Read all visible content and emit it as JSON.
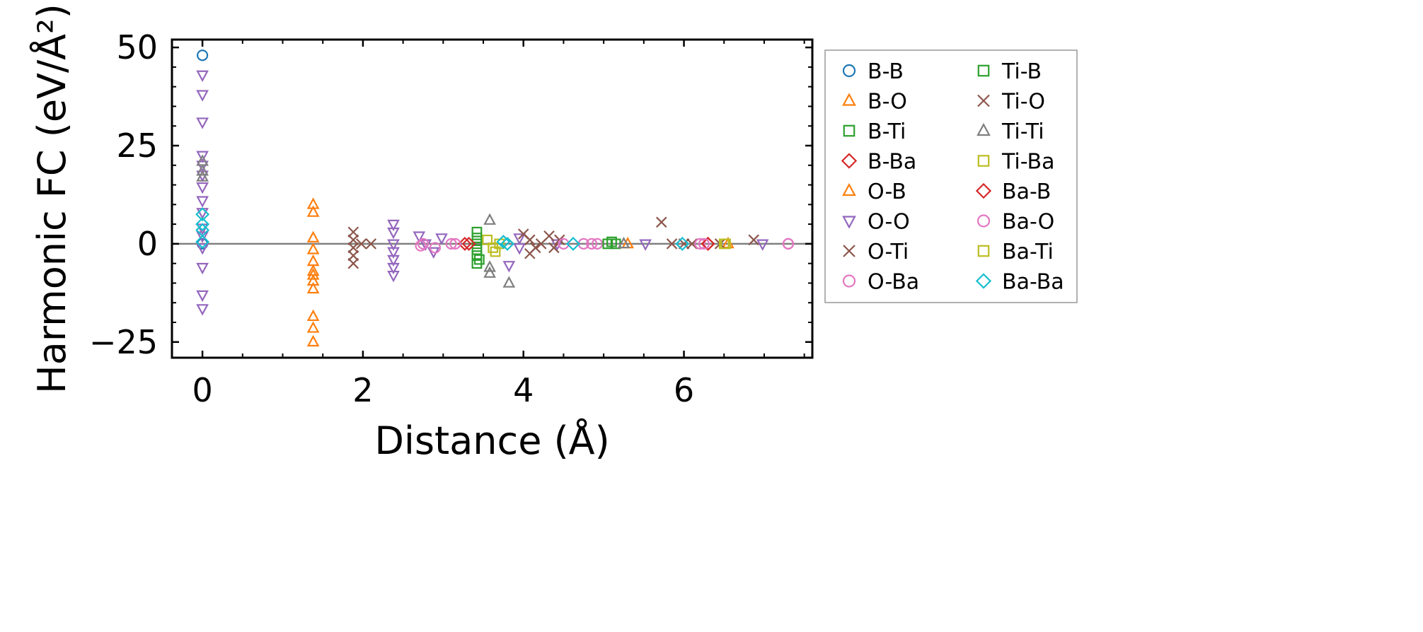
{
  "chart_data": {
    "type": "scatter",
    "title": "",
    "xlabel": "Distance (Å)",
    "ylabel": "Harmonic FC (eV/Å²)",
    "xlim": [
      -0.38,
      7.6
    ],
    "ylim": [
      -29,
      52
    ],
    "xticks": [
      0,
      2,
      4,
      6
    ],
    "xtick_labels": [
      "0",
      "2",
      "4",
      "6"
    ],
    "yticks": [
      -25,
      0,
      25,
      50
    ],
    "ytick_labels": [
      "−25",
      "0",
      "25",
      "50"
    ],
    "grid": false,
    "zero_line": true,
    "legend_position": "outside-right",
    "legend_columns": 2,
    "series": [
      {
        "name": "B-B",
        "marker": "circle",
        "color": "#1f77b4",
        "points": [
          [
            0,
            48
          ],
          [
            0,
            0
          ]
        ]
      },
      {
        "name": "B-O",
        "marker": "triangle-up",
        "color": "#ff7f0e",
        "points": [
          [
            1.38,
            10
          ],
          [
            1.38,
            8
          ],
          [
            1.38,
            1.5
          ],
          [
            1.38,
            -1.5
          ],
          [
            1.38,
            -4.5
          ],
          [
            1.38,
            -8
          ],
          [
            1.38,
            -9.5
          ],
          [
            1.38,
            -11.5
          ],
          [
            1.38,
            -18.5
          ],
          [
            1.38,
            -21.5
          ],
          [
            1.38,
            -25
          ]
        ]
      },
      {
        "name": "B-Ti",
        "marker": "square",
        "color": "#2ca02c",
        "points": [
          [
            3.42,
            3
          ],
          [
            3.42,
            1.5
          ],
          [
            3.42,
            0
          ],
          [
            3.42,
            -1.5
          ],
          [
            3.42,
            -3
          ],
          [
            3.42,
            -5
          ],
          [
            5.1,
            0.5
          ],
          [
            5.15,
            0
          ]
        ]
      },
      {
        "name": "B-Ba",
        "marker": "diamond",
        "color": "#d62728",
        "points": [
          [
            3.27,
            0
          ],
          [
            6.3,
            0
          ]
        ]
      },
      {
        "name": "O-B",
        "marker": "triangle-up",
        "color": "#ff7f0e",
        "points": [
          [
            1.38,
            -7
          ],
          [
            5.3,
            0
          ],
          [
            6.55,
            0
          ]
        ]
      },
      {
        "name": "O-O",
        "marker": "triangle-down",
        "color": "#9467bd",
        "points": [
          [
            0,
            43
          ],
          [
            0,
            38
          ],
          [
            0,
            31
          ],
          [
            0,
            22.5
          ],
          [
            0,
            20
          ],
          [
            0,
            17.5
          ],
          [
            0,
            14.5
          ],
          [
            0,
            11
          ],
          [
            0,
            8
          ],
          [
            0,
            4
          ],
          [
            0,
            2
          ],
          [
            0,
            -1
          ],
          [
            0,
            -6
          ],
          [
            0,
            -13
          ],
          [
            0,
            -16.5
          ],
          [
            2.38,
            5
          ],
          [
            2.38,
            3
          ],
          [
            2.38,
            0
          ],
          [
            2.38,
            -2
          ],
          [
            2.38,
            -4
          ],
          [
            2.38,
            -6
          ],
          [
            2.38,
            -8
          ],
          [
            2.7,
            2
          ],
          [
            2.78,
            0
          ],
          [
            2.88,
            -2
          ],
          [
            2.98,
            1.5
          ],
          [
            3.95,
            1.5
          ],
          [
            3.95,
            -1
          ],
          [
            3.82,
            -5.5
          ],
          [
            4.42,
            0
          ],
          [
            5.52,
            0
          ],
          [
            6.98,
            0
          ]
        ]
      },
      {
        "name": "O-Ti",
        "marker": "x",
        "color": "#8c564b",
        "points": [
          [
            1.88,
            3
          ],
          [
            1.88,
            1
          ],
          [
            1.88,
            -1
          ],
          [
            1.88,
            -3
          ],
          [
            1.88,
            -5
          ],
          [
            1.98,
            0
          ],
          [
            2.1,
            0
          ],
          [
            4.0,
            2.5
          ],
          [
            4.08,
            1
          ],
          [
            4.15,
            -1
          ],
          [
            4.22,
            0
          ],
          [
            4.32,
            2
          ],
          [
            4.38,
            -1
          ],
          [
            4.45,
            1
          ],
          [
            5.72,
            5.5
          ],
          [
            5.85,
            0
          ],
          [
            6.1,
            0
          ],
          [
            6.87,
            1
          ]
        ]
      },
      {
        "name": "O-Ba",
        "marker": "circle",
        "color": "#e377c2",
        "points": [
          [
            2.75,
            0
          ],
          [
            2.9,
            -1
          ],
          [
            3.1,
            0
          ],
          [
            4.5,
            0
          ],
          [
            4.75,
            0
          ],
          [
            4.92,
            0
          ],
          [
            6.2,
            0
          ],
          [
            7.3,
            0
          ]
        ]
      },
      {
        "name": "Ti-B",
        "marker": "square",
        "color": "#2ca02c",
        "points": [
          [
            3.45,
            -4
          ],
          [
            5.05,
            0
          ]
        ]
      },
      {
        "name": "Ti-O",
        "marker": "x",
        "color": "#8c564b",
        "points": [
          [
            4.08,
            -2.5
          ],
          [
            6.0,
            0
          ],
          [
            6.45,
            0
          ]
        ]
      },
      {
        "name": "Ti-Ti",
        "marker": "triangle-up",
        "color": "#7f7f7f",
        "points": [
          [
            0,
            21
          ],
          [
            0,
            18.5
          ],
          [
            0,
            17
          ],
          [
            3.58,
            6
          ],
          [
            3.58,
            -6
          ],
          [
            3.58,
            -7.5
          ],
          [
            3.82,
            -10
          ],
          [
            5.25,
            0
          ]
        ]
      },
      {
        "name": "Ti-Ba",
        "marker": "square",
        "color": "#bcbd22",
        "points": [
          [
            3.55,
            1
          ],
          [
            3.62,
            -1
          ],
          [
            3.7,
            0
          ],
          [
            6.5,
            0
          ]
        ]
      },
      {
        "name": "Ba-B",
        "marker": "diamond",
        "color": "#d62728",
        "points": [
          [
            3.32,
            0
          ],
          [
            6.3,
            0
          ]
        ]
      },
      {
        "name": "Ba-O",
        "marker": "circle",
        "color": "#e377c2",
        "points": [
          [
            2.72,
            -0.5
          ],
          [
            3.15,
            0
          ],
          [
            4.85,
            0
          ],
          [
            6.25,
            0
          ],
          [
            7.3,
            0
          ]
        ]
      },
      {
        "name": "Ba-Ti",
        "marker": "square",
        "color": "#bcbd22",
        "points": [
          [
            3.65,
            -2
          ],
          [
            6.52,
            0
          ]
        ]
      },
      {
        "name": "Ba-Ba",
        "marker": "diamond",
        "color": "#17becf",
        "points": [
          [
            0,
            7.5
          ],
          [
            0,
            5
          ],
          [
            0,
            3.5
          ],
          [
            0,
            0.5
          ],
          [
            3.8,
            0
          ],
          [
            3.75,
            0.5
          ],
          [
            4.62,
            0
          ],
          [
            5.98,
            0
          ]
        ]
      }
    ]
  }
}
